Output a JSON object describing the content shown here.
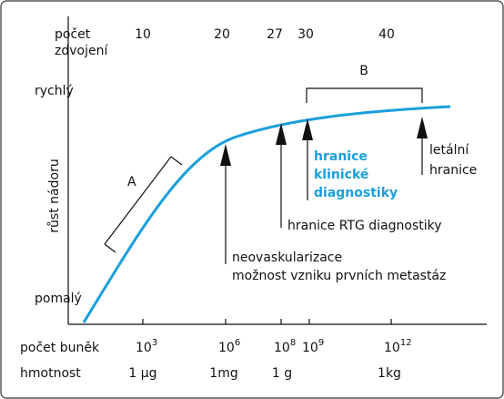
{
  "doublings": {
    "label": [
      "počet",
      "zdvojení"
    ],
    "ticks": [
      "10",
      "20",
      "27",
      "30",
      "40"
    ]
  },
  "y_axis": {
    "label": "růst nádoru",
    "top": "rychlý",
    "bottom": "pomalý"
  },
  "cells": {
    "label": "počet buněk",
    "ticks": [
      {
        "base": "10",
        "exp": "3"
      },
      {
        "base": "10",
        "exp": "6"
      },
      {
        "base": "10",
        "exp": "8"
      },
      {
        "base": "10",
        "exp": "9"
      },
      {
        "base": "10",
        "exp": "12"
      }
    ]
  },
  "mass": {
    "label": "hmotnost",
    "ticks": [
      "1 µg",
      "1mg",
      "1 g",
      "1kg"
    ]
  },
  "brackets": {
    "a": "A",
    "b": "B"
  },
  "arrows": [
    {
      "lines": [
        "neovaskularizace",
        "možnost vzniku prvních metastáz"
      ]
    },
    {
      "lines": [
        "hranice RTG diagnostiky"
      ]
    },
    {
      "lines": [
        "hranice",
        "klinické",
        "diagnostiky"
      ]
    },
    {
      "lines": [
        "letální",
        "hranice"
      ]
    }
  ]
}
